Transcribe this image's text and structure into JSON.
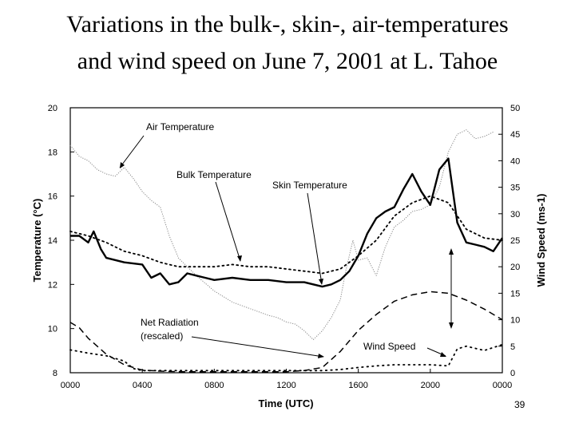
{
  "slide": {
    "title_line1": "Variations in the bulk-, skin-, air-temperatures",
    "title_line2": "and wind speed on June 7, 2001 at L. Tahoe",
    "page_number": "39"
  },
  "chart_data": {
    "type": "line",
    "xlabel": "Time (UTC)",
    "ylabel_left": "Temperature (°C)",
    "ylabel_right": "Wind Speed (ms-1)",
    "xlim": [
      0,
      24
    ],
    "ylim_left": [
      8,
      20
    ],
    "ylim_right": [
      0,
      50
    ],
    "x_ticks": [
      {
        "value": 0,
        "label": "0000"
      },
      {
        "value": 4,
        "label": "0400"
      },
      {
        "value": 8,
        "label": "0800"
      },
      {
        "value": 12,
        "label": "1200"
      },
      {
        "value": 16,
        "label": "1600"
      },
      {
        "value": 20,
        "label": "2000"
      },
      {
        "value": 24,
        "label": "0000"
      }
    ],
    "y_left_ticks": [
      8,
      10,
      12,
      14,
      16,
      18,
      20
    ],
    "y_right_ticks": [
      0,
      5,
      10,
      15,
      20,
      25,
      30,
      35,
      40,
      45,
      50
    ],
    "grid": false,
    "legend": "inline annotations",
    "series": [
      {
        "name": "Air Temperature",
        "axis": "left",
        "style": "dotted-light",
        "color": "#888888",
        "x": [
          0,
          0.5,
          1,
          1.5,
          2,
          2.5,
          3,
          3.5,
          4,
          4.5,
          5,
          5.5,
          6,
          7,
          8,
          9,
          10,
          11,
          11.5,
          12,
          12.5,
          13,
          13.5,
          14,
          14.5,
          15,
          15.3,
          15.7,
          16,
          16.5,
          17,
          17.5,
          18,
          18.5,
          19,
          19.5,
          20,
          20.5,
          21,
          21.5,
          22,
          22.5,
          23,
          23.5
        ],
        "y": [
          18.3,
          17.8,
          17.6,
          17.2,
          17.0,
          16.9,
          17.3,
          16.8,
          16.2,
          15.8,
          15.5,
          14.2,
          13.2,
          12.4,
          11.7,
          11.2,
          10.9,
          10.6,
          10.5,
          10.3,
          10.2,
          9.9,
          9.5,
          9.9,
          10.5,
          11.3,
          12.6,
          14.0,
          13.1,
          13.2,
          12.4,
          13.7,
          14.6,
          14.9,
          15.3,
          15.4,
          15.6,
          16.4,
          18.0,
          18.8,
          19.0,
          18.6,
          18.7,
          18.9
        ]
      },
      {
        "name": "Bulk Temperature",
        "axis": "left",
        "style": "dotted-dark",
        "color": "#000000",
        "x": [
          0,
          1,
          2,
          3,
          4,
          5,
          6,
          7,
          8,
          9,
          10,
          11,
          12,
          13,
          14,
          15,
          16,
          17,
          18,
          19,
          20,
          21,
          22,
          23,
          24
        ],
        "y": [
          14.4,
          14.2,
          13.9,
          13.5,
          13.3,
          13.0,
          12.8,
          12.8,
          12.8,
          12.9,
          12.8,
          12.8,
          12.7,
          12.6,
          12.5,
          12.7,
          13.3,
          14.0,
          15.1,
          15.7,
          16.0,
          15.7,
          14.5,
          14.1,
          14.0
        ]
      },
      {
        "name": "Skin Temperature",
        "axis": "left",
        "style": "solid-thick",
        "color": "#000000",
        "x": [
          0,
          0.5,
          1,
          1.3,
          1.7,
          2,
          3,
          4,
          4.5,
          5,
          5.5,
          6,
          6.5,
          7,
          8,
          9,
          10,
          11,
          12,
          13,
          14,
          14.5,
          15,
          15.5,
          16,
          16.5,
          17,
          17.5,
          18,
          18.5,
          19,
          19.5,
          20,
          20.5,
          21,
          21.5,
          22,
          22.5,
          23,
          23.5,
          24
        ],
        "y": [
          14.2,
          14.2,
          13.9,
          14.4,
          13.6,
          13.2,
          13.0,
          12.9,
          12.3,
          12.5,
          12.0,
          12.1,
          12.5,
          12.4,
          12.2,
          12.3,
          12.2,
          12.2,
          12.1,
          12.1,
          11.9,
          12.0,
          12.2,
          12.6,
          13.3,
          14.3,
          15.0,
          15.3,
          15.5,
          16.3,
          17.0,
          16.2,
          15.6,
          17.2,
          17.7,
          14.8,
          13.9,
          13.8,
          13.7,
          13.5,
          14.1
        ]
      },
      {
        "name": "Wind Speed",
        "axis": "right",
        "style": "dashed",
        "color": "#000000",
        "x": [
          0,
          0.5,
          1,
          1.5,
          2,
          3,
          4,
          5,
          6,
          7,
          8,
          9,
          10,
          11,
          12,
          13,
          14,
          15,
          16,
          17,
          18,
          19,
          20,
          21,
          22,
          23,
          24
        ],
        "y": [
          9.5,
          8.5,
          6.5,
          5.0,
          3.5,
          1.5,
          0.5,
          0.3,
          0.2,
          0.2,
          0.2,
          0.2,
          0.2,
          0.2,
          0.2,
          0.4,
          1.0,
          4.0,
          8.0,
          11.0,
          13.5,
          14.7,
          15.3,
          15.0,
          13.7,
          12.0,
          10.0
        ]
      },
      {
        "name": "Net Radiation (rescaled)",
        "axis": "right",
        "style": "dotted-sparse",
        "color": "#000000",
        "x": [
          0,
          1,
          2,
          3,
          3.5,
          4,
          5,
          6,
          7,
          8,
          9,
          10,
          11,
          12,
          13,
          14,
          15,
          16,
          17,
          18,
          19,
          20,
          21,
          21.5,
          22,
          23,
          24
        ],
        "y": [
          4.3,
          3.7,
          3.2,
          2.2,
          0.8,
          0.4,
          0.4,
          0.4,
          0.4,
          0.4,
          0.4,
          0.4,
          0.4,
          0.4,
          0.4,
          0.4,
          0.6,
          1.0,
          1.3,
          1.5,
          1.5,
          1.5,
          1.3,
          4.5,
          5.0,
          4.2,
          5.3
        ]
      }
    ],
    "annotations": [
      {
        "text": "Air Temperature",
        "target_series": "Air Temperature"
      },
      {
        "text": "Bulk Temperature",
        "target_series": "Bulk Temperature"
      },
      {
        "text": "Skin Temperature",
        "target_series": "Skin Temperature"
      },
      {
        "text": "Net Radiation",
        "text2": "(rescaled)",
        "target_series": "Net Radiation (rescaled)"
      },
      {
        "text": "Wind Speed",
        "target_series": "Wind Speed"
      }
    ]
  }
}
